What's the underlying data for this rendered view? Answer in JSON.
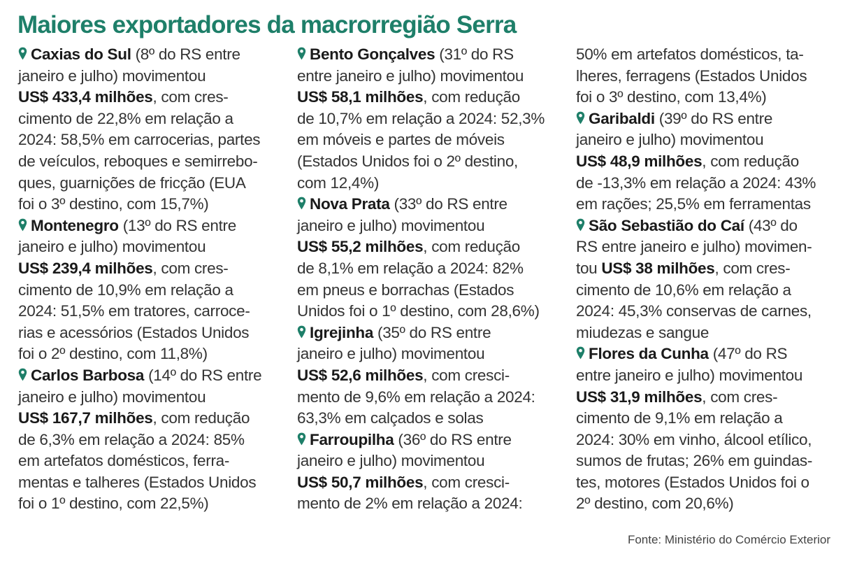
{
  "title": "Maiores exportadores da macrorregião Serra",
  "source": "Fonte: Ministério do Comércio Exterior",
  "accent_color": "#1e7f69",
  "pin_icon": "map-pin-icon",
  "columns": [
    {
      "lines": [
        {
          "parts": [
            {
              "t": "Caxias do Sul",
              "s": "city"
            },
            {
              "t": " (8º do RS entre"
            }
          ]
        },
        {
          "parts": [
            {
              "t": "janeiro e julho) movimentou"
            }
          ]
        },
        {
          "parts": [
            {
              "t": "US$ 433,4 milhões",
              "s": "amount"
            },
            {
              "t": ", com cres-"
            }
          ]
        },
        {
          "parts": [
            {
              "t": "cimento de 22,8% em relação a"
            }
          ]
        },
        {
          "parts": [
            {
              "t": "2024: 58,5% em carrocerias, partes"
            }
          ]
        },
        {
          "parts": [
            {
              "t": "de veículos, reboques e semirrebo-"
            }
          ]
        },
        {
          "parts": [
            {
              "t": "ques, guarnições de fricção (EUA"
            }
          ]
        },
        {
          "parts": [
            {
              "t": "foi o 3º destino, com 15,7%)"
            }
          ]
        },
        {
          "parts": [
            {
              "t": "Montenegro",
              "s": "city"
            },
            {
              "t": " (13º do RS entre"
            }
          ]
        },
        {
          "parts": [
            {
              "t": "janeiro e julho) movimentou"
            }
          ]
        },
        {
          "parts": [
            {
              "t": "US$ 239,4 milhões",
              "s": "amount"
            },
            {
              "t": ", com cres-"
            }
          ]
        },
        {
          "parts": [
            {
              "t": "cimento de 10,9% em relação a"
            }
          ]
        },
        {
          "parts": [
            {
              "t": "2024: 51,5% em tratores, carroce-"
            }
          ]
        },
        {
          "parts": [
            {
              "t": "rias e acessórios (Estados Unidos"
            }
          ]
        },
        {
          "parts": [
            {
              "t": "foi o 2º destino, com 11,8%)"
            }
          ]
        },
        {
          "parts": [
            {
              "t": "Carlos Barbosa",
              "s": "city"
            },
            {
              "t": " (14º do RS entre"
            }
          ]
        },
        {
          "parts": [
            {
              "t": "janeiro e julho) movimentou"
            }
          ]
        },
        {
          "parts": [
            {
              "t": "US$ 167,7 milhões",
              "s": "amount"
            },
            {
              "t": ", com redução"
            }
          ]
        },
        {
          "parts": [
            {
              "t": "de 6,3% em relação a 2024: 85%"
            }
          ]
        },
        {
          "parts": [
            {
              "t": "em artefatos domésticos, ferra-"
            }
          ]
        },
        {
          "parts": [
            {
              "t": "mentas e talheres (Estados Unidos"
            }
          ]
        },
        {
          "parts": [
            {
              "t": "foi o 1º destino, com 22,5%)"
            }
          ]
        }
      ]
    },
    {
      "lines": [
        {
          "parts": [
            {
              "t": "Bento Gonçalves",
              "s": "city"
            },
            {
              "t": " (31º do RS"
            }
          ]
        },
        {
          "parts": [
            {
              "t": "entre janeiro e julho) movimentou"
            }
          ]
        },
        {
          "parts": [
            {
              "t": "US$ 58,1 milhões",
              "s": "amount"
            },
            {
              "t": ", com redução"
            }
          ]
        },
        {
          "parts": [
            {
              "t": "de 10,7% em relação a 2024: 52,3%"
            }
          ]
        },
        {
          "parts": [
            {
              "t": "em móveis e partes de móveis"
            }
          ]
        },
        {
          "parts": [
            {
              "t": "(Estados Unidos foi o 2º destino,"
            }
          ]
        },
        {
          "parts": [
            {
              "t": "com 12,4%)"
            }
          ]
        },
        {
          "parts": [
            {
              "t": "Nova Prata",
              "s": "city"
            },
            {
              "t": " (33º do RS entre"
            }
          ]
        },
        {
          "parts": [
            {
              "t": "janeiro e julho) movimentou"
            }
          ]
        },
        {
          "parts": [
            {
              "t": "US$ 55,2 milhões",
              "s": "amount"
            },
            {
              "t": ", com redução"
            }
          ]
        },
        {
          "parts": [
            {
              "t": "de 8,1% em relação a 2024: 82%"
            }
          ]
        },
        {
          "parts": [
            {
              "t": "em pneus e borrachas (Estados"
            }
          ]
        },
        {
          "parts": [
            {
              "t": "Unidos foi o 1º destino, com 28,6%)"
            }
          ]
        },
        {
          "parts": [
            {
              "t": "Igrejinha",
              "s": "city"
            },
            {
              "t": " (35º do RS entre"
            }
          ]
        },
        {
          "parts": [
            {
              "t": "janeiro e julho) movimentou"
            }
          ]
        },
        {
          "parts": [
            {
              "t": "US$ 52,6 milhões",
              "s": "amount"
            },
            {
              "t": ", com cresci-"
            }
          ]
        },
        {
          "parts": [
            {
              "t": "mento de 9,6% em relação a 2024:"
            }
          ]
        },
        {
          "parts": [
            {
              "t": "63,3% em calçados e solas"
            }
          ]
        },
        {
          "parts": [
            {
              "t": "Farroupilha",
              "s": "city"
            },
            {
              "t": " (36º do RS entre"
            }
          ]
        },
        {
          "parts": [
            {
              "t": "janeiro e julho) movimentou"
            }
          ]
        },
        {
          "parts": [
            {
              "t": "US$ 50,7 milhões",
              "s": "amount"
            },
            {
              "t": ", com cresci-"
            }
          ]
        },
        {
          "parts": [
            {
              "t": "mento de 2% em relação a 2024:"
            }
          ]
        }
      ]
    },
    {
      "lines": [
        {
          "parts": [
            {
              "t": "50% em artefatos domésticos, ta-"
            }
          ]
        },
        {
          "parts": [
            {
              "t": "lheres, ferragens (Estados Unidos"
            }
          ]
        },
        {
          "parts": [
            {
              "t": "foi o 3º destino, com 13,4%)"
            }
          ]
        },
        {
          "parts": [
            {
              "t": "Garibaldi",
              "s": "city"
            },
            {
              "t": " (39º do RS entre"
            }
          ]
        },
        {
          "parts": [
            {
              "t": "janeiro e julho) movimentou"
            }
          ]
        },
        {
          "parts": [
            {
              "t": "US$ 48,9 milhões",
              "s": "amount"
            },
            {
              "t": ", com redução"
            }
          ]
        },
        {
          "parts": [
            {
              "t": "de -13,3% em relação a 2024: 43%"
            }
          ]
        },
        {
          "parts": [
            {
              "t": "em rações; 25,5% em ferramentas"
            }
          ]
        },
        {
          "parts": [
            {
              "t": "São Sebastião do Caí",
              "s": "city"
            },
            {
              "t": " (43º do"
            }
          ]
        },
        {
          "parts": [
            {
              "t": "RS entre janeiro e julho) movimen-"
            }
          ]
        },
        {
          "parts": [
            {
              "t": "tou "
            },
            {
              "t": "US$ 38 milhões",
              "s": "amount"
            },
            {
              "t": ", com cres-"
            }
          ]
        },
        {
          "parts": [
            {
              "t": "cimento de 10,6% em relação a"
            }
          ]
        },
        {
          "parts": [
            {
              "t": "2024: 45,3% conservas de carnes,"
            }
          ]
        },
        {
          "parts": [
            {
              "t": "miudezas e sangue"
            }
          ]
        },
        {
          "parts": [
            {
              "t": "Flores da Cunha",
              "s": "city"
            },
            {
              "t": " (47º do RS"
            }
          ]
        },
        {
          "parts": [
            {
              "t": "entre janeiro e julho) movimentou"
            }
          ]
        },
        {
          "parts": [
            {
              "t": "US$ 31,9 milhões",
              "s": "amount"
            },
            {
              "t": ", com cres-"
            }
          ]
        },
        {
          "parts": [
            {
              "t": "cimento de 9,1% em relação a"
            }
          ]
        },
        {
          "parts": [
            {
              "t": "2024: 30% em vinho, álcool etílico,"
            }
          ]
        },
        {
          "parts": [
            {
              "t": "sumos de frutas; 26% em guindas-"
            }
          ]
        },
        {
          "parts": [
            {
              "t": "tes, motores (Estados Unidos foi o"
            }
          ]
        },
        {
          "parts": [
            {
              "t": "2º destino, com 20,6%)"
            }
          ]
        }
      ]
    }
  ]
}
